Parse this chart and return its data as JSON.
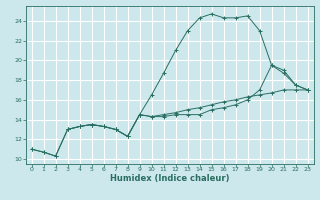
{
  "xlabel": "Humidex (Indice chaleur)",
  "xlim": [
    -0.5,
    23.5
  ],
  "ylim": [
    9.5,
    25.5
  ],
  "yticks": [
    10,
    12,
    14,
    16,
    18,
    20,
    22,
    24
  ],
  "xticks": [
    0,
    1,
    2,
    3,
    4,
    5,
    6,
    7,
    8,
    9,
    10,
    11,
    12,
    13,
    14,
    15,
    16,
    17,
    18,
    19,
    20,
    21,
    22,
    23
  ],
  "background_color": "#cce8ec",
  "grid_color": "#ffffff",
  "line_color": "#2a6e62",
  "line1_x": [
    0,
    1,
    2,
    3,
    4,
    5,
    6,
    7,
    8,
    9,
    10,
    11,
    12,
    13,
    14,
    15,
    16,
    17,
    18,
    19,
    20,
    21,
    22,
    23
  ],
  "line1_y": [
    11.0,
    10.7,
    10.3,
    13.0,
    13.3,
    13.5,
    13.3,
    13.0,
    12.3,
    14.5,
    14.3,
    14.5,
    14.7,
    15.0,
    15.2,
    15.5,
    15.8,
    16.0,
    16.3,
    16.5,
    16.7,
    17.0,
    17.0,
    17.0
  ],
  "line2_x": [
    0,
    1,
    2,
    3,
    4,
    5,
    6,
    7,
    8,
    9,
    10,
    11,
    12,
    13,
    14,
    15,
    16,
    17,
    18,
    19,
    20,
    21,
    22,
    23
  ],
  "line2_y": [
    11.0,
    10.7,
    10.3,
    13.0,
    13.3,
    13.5,
    13.3,
    13.0,
    12.3,
    14.5,
    16.5,
    18.7,
    21.0,
    23.0,
    24.3,
    24.7,
    24.3,
    24.3,
    24.5,
    23.0,
    19.5,
    19.0,
    17.5,
    17.0
  ],
  "line3_x": [
    3,
    4,
    5,
    6,
    7,
    8,
    9,
    10,
    11,
    12,
    13,
    14,
    15,
    16,
    17,
    18,
    19,
    20,
    21,
    22,
    23
  ],
  "line3_y": [
    13.0,
    13.3,
    13.5,
    13.3,
    13.0,
    12.3,
    14.5,
    14.3,
    14.3,
    14.5,
    14.5,
    14.5,
    15.0,
    15.2,
    15.5,
    16.0,
    17.0,
    19.5,
    18.7,
    17.5,
    17.0
  ],
  "tick_fontsize": 4.5,
  "xlabel_fontsize": 6.0
}
